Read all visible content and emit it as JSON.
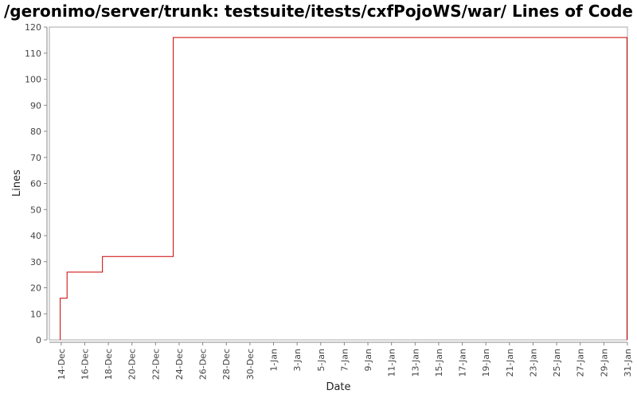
{
  "title": "/geronimo/server/trunk: testsuite/itests/cxfPojoWS/war/ Lines of Code",
  "colors": {
    "line": "#cc0000",
    "axis": "#888888",
    "plot_border": "#999999"
  },
  "chart_data": {
    "type": "line",
    "step": true,
    "xlabel": "Date",
    "ylabel": "Lines",
    "ylim": [
      0,
      120
    ],
    "yticks": [
      0,
      10,
      20,
      30,
      40,
      50,
      60,
      70,
      80,
      90,
      100,
      110,
      120
    ],
    "xlim": [
      "2007-12-13",
      "2008-01-31"
    ],
    "xticks": [
      {
        "date": "2007-12-14",
        "label": "14-Dec"
      },
      {
        "date": "2007-12-16",
        "label": "16-Dec"
      },
      {
        "date": "2007-12-18",
        "label": "18-Dec"
      },
      {
        "date": "2007-12-20",
        "label": "20-Dec"
      },
      {
        "date": "2007-12-22",
        "label": "22-Dec"
      },
      {
        "date": "2007-12-24",
        "label": "24-Dec"
      },
      {
        "date": "2007-12-26",
        "label": "26-Dec"
      },
      {
        "date": "2007-12-28",
        "label": "28-Dec"
      },
      {
        "date": "2007-12-30",
        "label": "30-Dec"
      },
      {
        "date": "2008-01-01",
        "label": "1-Jan"
      },
      {
        "date": "2008-01-03",
        "label": "3-Jan"
      },
      {
        "date": "2008-01-05",
        "label": "5-Jan"
      },
      {
        "date": "2008-01-07",
        "label": "7-Jan"
      },
      {
        "date": "2008-01-09",
        "label": "9-Jan"
      },
      {
        "date": "2008-01-11",
        "label": "11-Jan"
      },
      {
        "date": "2008-01-13",
        "label": "13-Jan"
      },
      {
        "date": "2008-01-15",
        "label": "15-Jan"
      },
      {
        "date": "2008-01-17",
        "label": "17-Jan"
      },
      {
        "date": "2008-01-19",
        "label": "19-Jan"
      },
      {
        "date": "2008-01-21",
        "label": "21-Jan"
      },
      {
        "date": "2008-01-23",
        "label": "23-Jan"
      },
      {
        "date": "2008-01-25",
        "label": "25-Jan"
      },
      {
        "date": "2008-01-27",
        "label": "27-Jan"
      },
      {
        "date": "2008-01-29",
        "label": "29-Jan"
      },
      {
        "date": "2008-01-31",
        "label": "31-Jan"
      }
    ],
    "series": [
      {
        "points": [
          {
            "x": "2007-12-13T22:00",
            "y": 0
          },
          {
            "x": "2007-12-13T22:00",
            "y": 16
          },
          {
            "x": "2007-12-14T12:00",
            "y": 26
          },
          {
            "x": "2007-12-17T12:00",
            "y": 32
          },
          {
            "x": "2007-12-23T12:00",
            "y": 116
          },
          {
            "x": "2008-01-30T23:00",
            "y": 0
          }
        ]
      }
    ]
  }
}
